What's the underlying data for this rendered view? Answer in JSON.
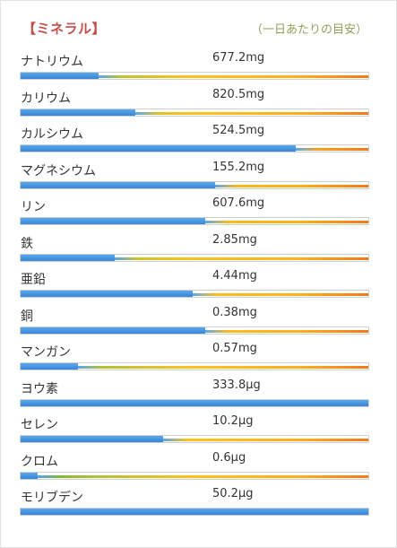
{
  "header": {
    "title": "【ミネラル】",
    "note": "（一日あたりの目安）"
  },
  "colors": {
    "title": "#c0504d",
    "note": "#8fa05a",
    "bar_fill": "#3a86d4"
  },
  "minerals": [
    {
      "name": "ナトリウム",
      "amount": "677.2mg",
      "level": 0.225
    },
    {
      "name": "カリウム",
      "amount": "820.5mg",
      "level": 0.33
    },
    {
      "name": "カルシウム",
      "amount": "524.5mg",
      "level": 0.79
    },
    {
      "name": "マグネシウム",
      "amount": "155.2mg",
      "level": 0.56
    },
    {
      "name": "リン",
      "amount": "607.6mg",
      "level": 0.53
    },
    {
      "name": "鉄",
      "amount": "2.85mg",
      "level": 0.27
    },
    {
      "name": "亜鉛",
      "amount": "4.44mg",
      "level": 0.495
    },
    {
      "name": "銅",
      "amount": "0.38mg",
      "level": 0.53
    },
    {
      "name": "マンガン",
      "amount": "0.57mg",
      "level": 0.165
    },
    {
      "name": "ヨウ素",
      "amount": "333.8μg",
      "level": 1.0
    },
    {
      "name": "セレン",
      "amount": "10.2μg",
      "level": 0.41
    },
    {
      "name": "クロム",
      "amount": "0.6μg",
      "level": 0.05
    },
    {
      "name": "モリブデン",
      "amount": "50.2μg",
      "level": 1.0
    }
  ]
}
